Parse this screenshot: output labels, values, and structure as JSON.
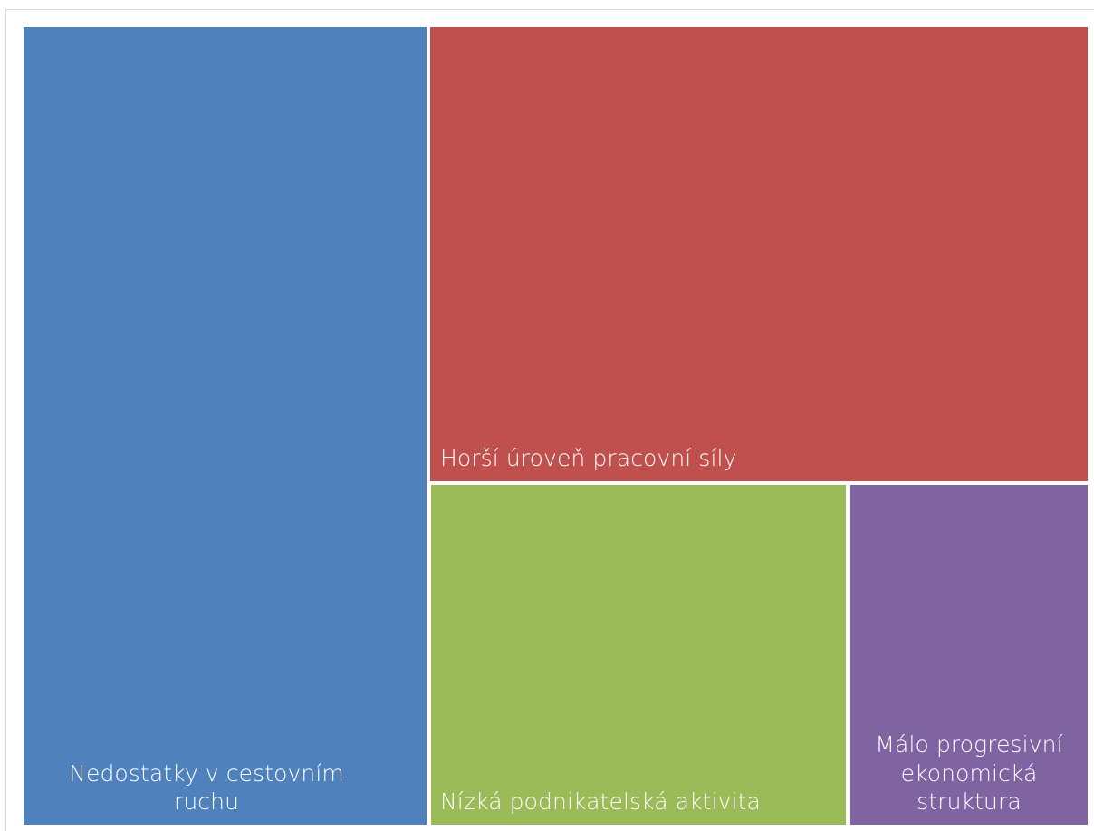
{
  "chart_data": {
    "type": "treemap",
    "title": "",
    "items": [
      {
        "label": "Nedostatky v cestovním\nruchu",
        "value": 391,
        "color": "#4f81bd"
      },
      {
        "label": "Horší úroveň pracovní síly",
        "value": 364,
        "color": "#c0504d"
      },
      {
        "label": "Nízká podnikatelská aktivita",
        "value": 172,
        "color": "#9bbb59"
      },
      {
        "label": "Málo progresivní\nekonomická\nstruktura",
        "value": 98,
        "color": "#8064a2"
      }
    ]
  }
}
